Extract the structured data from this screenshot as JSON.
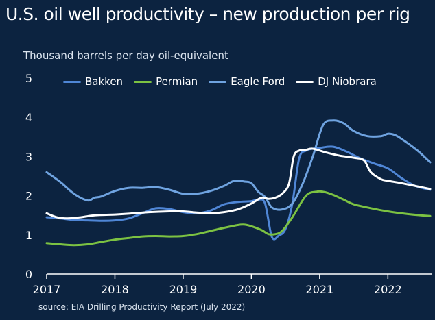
{
  "title": "U.S. oil well productivity – new production per rig",
  "subtitle": "Thousand barrels per day oil-equivalent",
  "source": "source:  EIA Drilling Productivity Report (July 2022)",
  "chart_data": {
    "type": "line",
    "ylabel": "Thousand barrels per day oil-equivalent",
    "xlim": [
      2017,
      2022.65
    ],
    "ylim": [
      0,
      5
    ],
    "yticks": [
      "0",
      "1",
      "2",
      "3",
      "4",
      "5"
    ],
    "xticks": [
      "2017",
      "2018",
      "2019",
      "2020",
      "2021",
      "2022"
    ],
    "series": [
      {
        "name": "Bakken",
        "color": "#4f86d6",
        "points": [
          [
            2017.0,
            1.45
          ],
          [
            2017.2,
            1.42
          ],
          [
            2017.4,
            1.38
          ],
          [
            2017.6,
            1.37
          ],
          [
            2017.8,
            1.36
          ],
          [
            2018.0,
            1.37
          ],
          [
            2018.2,
            1.42
          ],
          [
            2018.4,
            1.55
          ],
          [
            2018.6,
            1.68
          ],
          [
            2018.8,
            1.66
          ],
          [
            2019.0,
            1.58
          ],
          [
            2019.2,
            1.55
          ],
          [
            2019.4,
            1.62
          ],
          [
            2019.6,
            1.78
          ],
          [
            2019.8,
            1.84
          ],
          [
            2020.0,
            1.86
          ],
          [
            2020.1,
            1.9
          ],
          [
            2020.2,
            1.8
          ],
          [
            2020.3,
            0.95
          ],
          [
            2020.4,
            0.98
          ],
          [
            2020.5,
            1.15
          ],
          [
            2020.6,
            1.8
          ],
          [
            2020.7,
            2.95
          ],
          [
            2020.8,
            3.15
          ],
          [
            2020.9,
            3.2
          ],
          [
            2021.0,
            3.22
          ],
          [
            2021.2,
            3.25
          ],
          [
            2021.4,
            3.12
          ],
          [
            2021.6,
            2.95
          ],
          [
            2021.8,
            2.82
          ],
          [
            2022.0,
            2.7
          ],
          [
            2022.2,
            2.45
          ],
          [
            2022.4,
            2.25
          ],
          [
            2022.62,
            2.15
          ]
        ]
      },
      {
        "name": "Permian",
        "color": "#7cc242",
        "points": [
          [
            2017.0,
            0.79
          ],
          [
            2017.2,
            0.76
          ],
          [
            2017.4,
            0.74
          ],
          [
            2017.6,
            0.76
          ],
          [
            2017.8,
            0.82
          ],
          [
            2018.0,
            0.88
          ],
          [
            2018.2,
            0.92
          ],
          [
            2018.4,
            0.96
          ],
          [
            2018.6,
            0.97
          ],
          [
            2018.8,
            0.96
          ],
          [
            2019.0,
            0.97
          ],
          [
            2019.2,
            1.02
          ],
          [
            2019.4,
            1.1
          ],
          [
            2019.6,
            1.18
          ],
          [
            2019.8,
            1.25
          ],
          [
            2019.9,
            1.26
          ],
          [
            2020.0,
            1.22
          ],
          [
            2020.15,
            1.12
          ],
          [
            2020.25,
            1.02
          ],
          [
            2020.35,
            1.02
          ],
          [
            2020.45,
            1.1
          ],
          [
            2020.6,
            1.45
          ],
          [
            2020.8,
            2.0
          ],
          [
            2020.95,
            2.1
          ],
          [
            2021.05,
            2.1
          ],
          [
            2021.2,
            2.02
          ],
          [
            2021.35,
            1.9
          ],
          [
            2021.5,
            1.78
          ],
          [
            2021.7,
            1.7
          ],
          [
            2022.0,
            1.6
          ],
          [
            2022.3,
            1.53
          ],
          [
            2022.62,
            1.48
          ]
        ]
      },
      {
        "name": "Eagle Ford",
        "color": "#6fa3e0",
        "points": [
          [
            2017.0,
            2.6
          ],
          [
            2017.2,
            2.35
          ],
          [
            2017.4,
            2.05
          ],
          [
            2017.6,
            1.88
          ],
          [
            2017.7,
            1.95
          ],
          [
            2017.8,
            1.98
          ],
          [
            2018.0,
            2.12
          ],
          [
            2018.2,
            2.2
          ],
          [
            2018.4,
            2.2
          ],
          [
            2018.6,
            2.22
          ],
          [
            2018.8,
            2.15
          ],
          [
            2019.0,
            2.05
          ],
          [
            2019.2,
            2.05
          ],
          [
            2019.4,
            2.12
          ],
          [
            2019.6,
            2.25
          ],
          [
            2019.75,
            2.38
          ],
          [
            2019.9,
            2.36
          ],
          [
            2020.0,
            2.32
          ],
          [
            2020.1,
            2.1
          ],
          [
            2020.2,
            1.97
          ],
          [
            2020.3,
            1.7
          ],
          [
            2020.45,
            1.65
          ],
          [
            2020.6,
            1.8
          ],
          [
            2020.75,
            2.3
          ],
          [
            2020.9,
            3.0
          ],
          [
            2021.05,
            3.8
          ],
          [
            2021.2,
            3.92
          ],
          [
            2021.35,
            3.85
          ],
          [
            2021.5,
            3.65
          ],
          [
            2021.7,
            3.52
          ],
          [
            2021.9,
            3.52
          ],
          [
            2022.0,
            3.58
          ],
          [
            2022.1,
            3.55
          ],
          [
            2022.2,
            3.45
          ],
          [
            2022.4,
            3.2
          ],
          [
            2022.5,
            3.05
          ],
          [
            2022.62,
            2.85
          ]
        ]
      },
      {
        "name": "DJ Niobrara",
        "color": "#ffffff",
        "points": [
          [
            2017.0,
            1.55
          ],
          [
            2017.15,
            1.45
          ],
          [
            2017.3,
            1.42
          ],
          [
            2017.5,
            1.45
          ],
          [
            2017.7,
            1.5
          ],
          [
            2018.0,
            1.52
          ],
          [
            2018.2,
            1.54
          ],
          [
            2018.5,
            1.58
          ],
          [
            2018.8,
            1.6
          ],
          [
            2019.0,
            1.6
          ],
          [
            2019.2,
            1.57
          ],
          [
            2019.4,
            1.55
          ],
          [
            2019.6,
            1.58
          ],
          [
            2019.8,
            1.65
          ],
          [
            2020.0,
            1.8
          ],
          [
            2020.15,
            1.95
          ],
          [
            2020.25,
            1.92
          ],
          [
            2020.35,
            1.95
          ],
          [
            2020.45,
            2.05
          ],
          [
            2020.55,
            2.3
          ],
          [
            2020.62,
            3.0
          ],
          [
            2020.7,
            3.15
          ],
          [
            2020.8,
            3.17
          ],
          [
            2020.9,
            3.2
          ],
          [
            2021.1,
            3.1
          ],
          [
            2021.3,
            3.02
          ],
          [
            2021.5,
            2.97
          ],
          [
            2021.65,
            2.9
          ],
          [
            2021.75,
            2.6
          ],
          [
            2021.9,
            2.42
          ],
          [
            2022.0,
            2.38
          ],
          [
            2022.2,
            2.32
          ],
          [
            2022.4,
            2.25
          ],
          [
            2022.62,
            2.17
          ]
        ]
      }
    ]
  }
}
